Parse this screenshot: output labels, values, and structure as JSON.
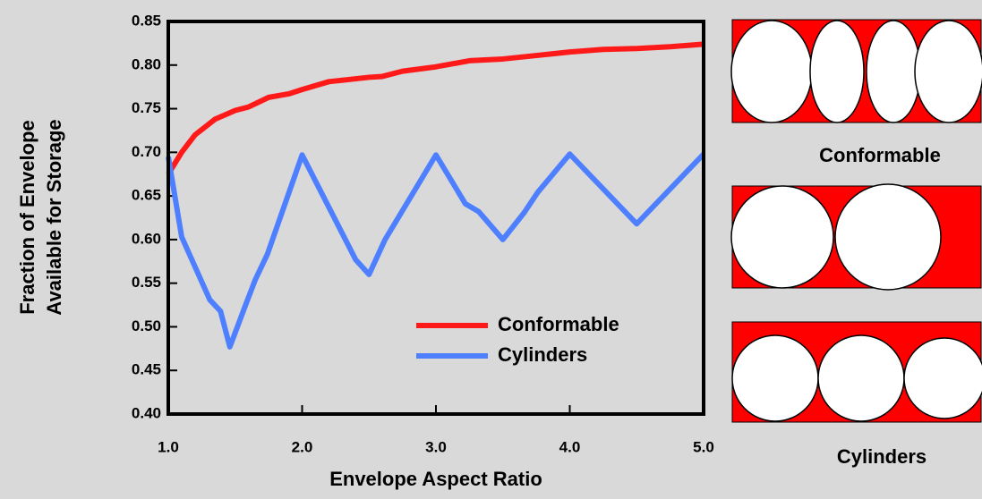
{
  "chart_data": {
    "type": "line",
    "xlabel": "Envelope Aspect Ratio",
    "ylabel": [
      "Fraction of Envelope",
      "Available for Storage"
    ],
    "xlim": [
      1,
      5
    ],
    "xticks": [
      {
        "value": 1,
        "label": "1.0"
      },
      {
        "value": 2,
        "label": "2.0"
      },
      {
        "value": 3,
        "label": "3.0"
      },
      {
        "value": 4,
        "label": "4.0"
      },
      {
        "value": 5,
        "label": "5.0"
      }
    ],
    "ylim": [
      0.4,
      0.85
    ],
    "yticks": [
      {
        "value": 0.4,
        "label": "0.40"
      },
      0.45,
      {
        "value": 0.5,
        "label": "0.50"
      },
      0.55,
      {
        "value": 0.6,
        "label": "0.60"
      },
      0.65,
      {
        "value": 0.7,
        "label": "0.70"
      },
      0.75,
      {
        "value": 0.8,
        "label": "0.80"
      },
      0.85
    ],
    "legend": "lower-center",
    "series": [
      {
        "name": "Conformable",
        "color": "#ff1a1a",
        "x": [
          1.0,
          1.1,
          1.2,
          1.35,
          1.5,
          1.6,
          1.75,
          1.9,
          2.0,
          2.2,
          2.5,
          2.6,
          2.75,
          3.0,
          3.25,
          3.5,
          3.75,
          4.0,
          4.25,
          4.5,
          4.75,
          5.0
        ],
        "values": [
          0.675,
          0.7,
          0.72,
          0.738,
          0.748,
          0.752,
          0.763,
          0.767,
          0.772,
          0.781,
          0.786,
          0.787,
          0.793,
          0.798,
          0.805,
          0.807,
          0.811,
          0.815,
          0.818,
          0.819,
          0.821,
          0.824
        ]
      },
      {
        "name": "Cylinders",
        "color": "#4d7fff",
        "x": [
          1.0,
          1.1,
          1.31,
          1.39,
          1.46,
          1.58,
          1.65,
          1.74,
          2.0,
          2.4,
          2.5,
          2.62,
          3.0,
          3.22,
          3.32,
          3.5,
          3.66,
          3.76,
          4.0,
          4.5,
          5.0
        ],
        "values": [
          0.695,
          0.603,
          0.531,
          0.518,
          0.477,
          0.526,
          0.554,
          0.583,
          0.697,
          0.577,
          0.56,
          0.6,
          0.697,
          0.641,
          0.632,
          0.6,
          0.631,
          0.654,
          0.698,
          0.618,
          0.698
        ]
      }
    ]
  },
  "illustrations": {
    "conformable_label": "Conformable",
    "cylinders_label": "Cylinders"
  }
}
